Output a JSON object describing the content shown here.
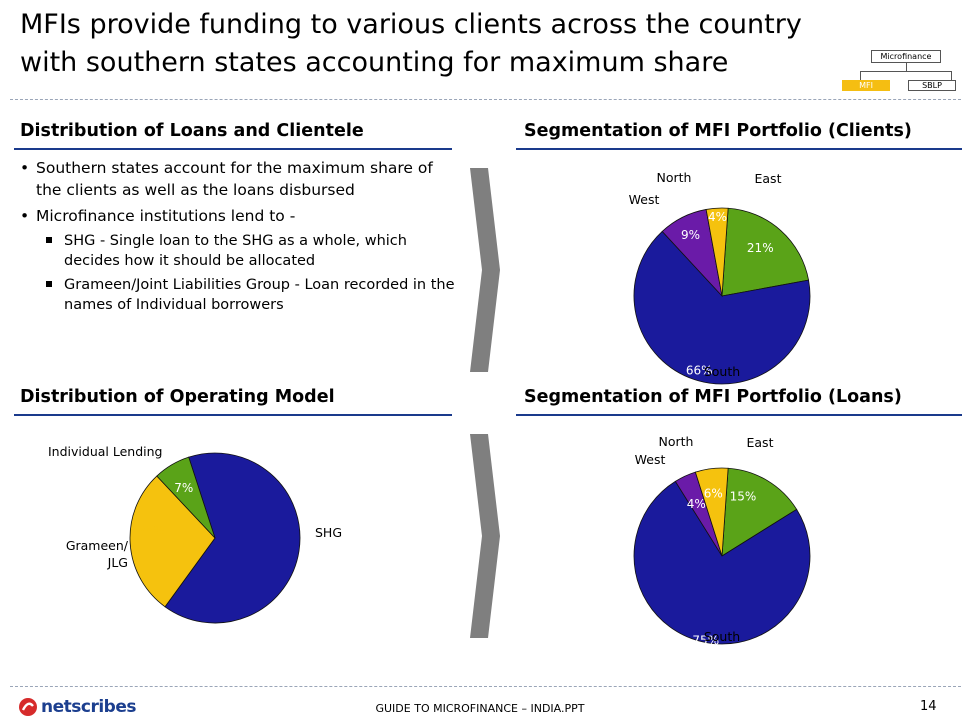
{
  "title": "MFIs provide funding to various clients  across the country with southern states accounting for maximum share",
  "badge": {
    "top": "Microfinance",
    "left": "MFI",
    "right": "SBLP",
    "highlight_color": "#f5be12"
  },
  "sections": {
    "loans_clientele": "Distribution of Loans and Clientele",
    "portfolio_clients": "Segmentation of MFI Portfolio (Clients)",
    "operating_model": "Distribution of Operating Model",
    "portfolio_loans": "Segmentation of MFI Portfolio (Loans)"
  },
  "bullets": [
    {
      "text": "Southern states account for the maximum share of the clients as well as the loans disbursed",
      "sub": []
    },
    {
      "text": "Microfinance institutions lend to -",
      "sub": [
        "SHG - Single loan to the SHG as a whole, which decides how it should be allocated",
        "Grameen/Joint Liabilities Group - Loan recorded in the names of Individual borrowers"
      ]
    }
  ],
  "colors": {
    "blue": "#1a1a9c",
    "green": "#5aa318",
    "yellow": "#f5c20e",
    "purple": "#6a1ba8",
    "rule": "#1a3a8c",
    "arrow": "#7f7f7f"
  },
  "chart_data": [
    {
      "type": "pie",
      "title": "Segmentation of MFI Portfolio (Clients)",
      "slices": [
        {
          "label": "East",
          "value": 21,
          "value_label": "21%",
          "color": "#5aa318"
        },
        {
          "label": "South",
          "value": 66,
          "value_label": "66%",
          "color": "#1a1a9c"
        },
        {
          "label": "West",
          "value": 9,
          "value_label": "9%",
          "color": "#6a1ba8"
        },
        {
          "label": "North",
          "value": 4,
          "value_label": "4%",
          "color": "#f5c20e"
        }
      ]
    },
    {
      "type": "pie",
      "title": "Distribution of Operating Model",
      "slices": [
        {
          "label": "SHG",
          "value": 65,
          "value_label": "65%",
          "color": "#1a1a9c"
        },
        {
          "label": "Grameen/ JLG",
          "value": 28,
          "value_label": "28%",
          "color": "#f5c20e"
        },
        {
          "label": "Individual Lending",
          "value": 7,
          "value_label": "7%",
          "color": "#5aa318"
        }
      ]
    },
    {
      "type": "pie",
      "title": "Segmentation of MFI Portfolio (Loans)",
      "slices": [
        {
          "label": "East",
          "value": 15,
          "value_label": "15%",
          "color": "#5aa318"
        },
        {
          "label": "South",
          "value": 75,
          "value_label": "75%",
          "color": "#1a1a9c"
        },
        {
          "label": "West",
          "value": 4,
          "value_label": "4%",
          "color": "#6a1ba8"
        },
        {
          "label": "North",
          "value": 6,
          "value_label": "6%",
          "color": "#f5c20e"
        }
      ]
    }
  ],
  "footer": {
    "logo": "netscribes",
    "center": "GUIDE TO MICROFINANCE – INDIA.PPT",
    "page": "14"
  }
}
